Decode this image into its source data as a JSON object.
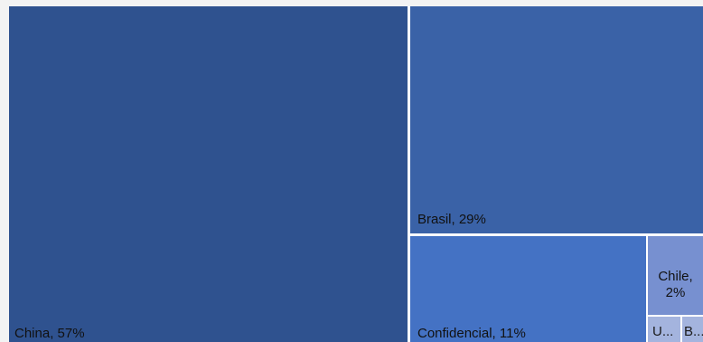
{
  "chart_data": {
    "type": "treemap",
    "items": [
      {
        "name": "China",
        "percent": 57,
        "label": "China, 57%",
        "color": "#2f528f"
      },
      {
        "name": "Brasil",
        "percent": 29,
        "label": "Brasil, 29%",
        "color": "#3a62a7"
      },
      {
        "name": "Confidencial",
        "percent": 11,
        "label": "Confidencial, 11%",
        "color": "#4472c4"
      },
      {
        "name": "Chile",
        "percent": 2,
        "label": "Chile, 2%",
        "color": "#7790d0"
      },
      {
        "name": "U",
        "percent": 0.6,
        "label": "U...",
        "color": "#a4b4de"
      },
      {
        "name": "B",
        "percent": 0.4,
        "label": "B...",
        "color": "#a4b4de"
      }
    ]
  }
}
